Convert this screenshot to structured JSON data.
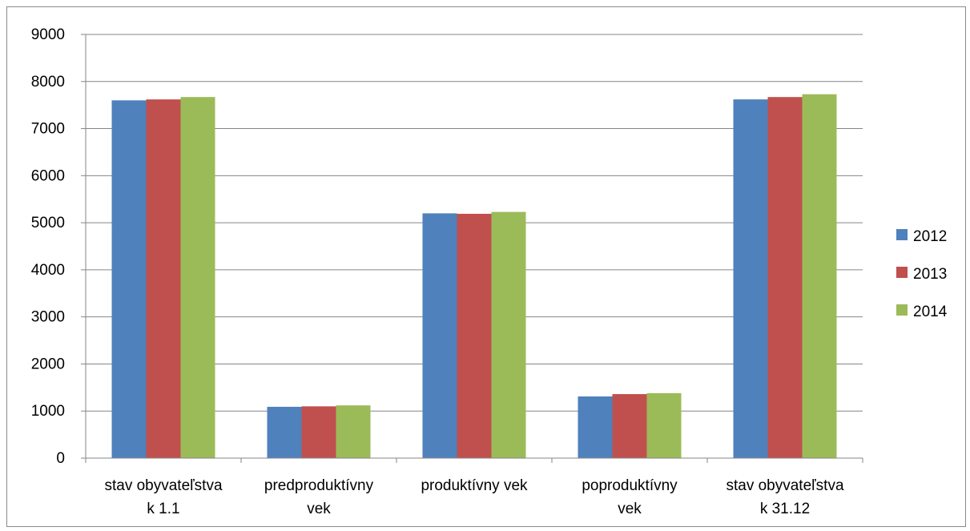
{
  "chart_data": {
    "type": "bar",
    "categories": [
      [
        "stav obyvateľstva",
        "k 1.1"
      ],
      [
        "predproduktívny",
        "vek"
      ],
      [
        "produktívny vek"
      ],
      [
        "poproduktívny",
        "vek"
      ],
      [
        "stav obyvateľstva",
        "k 31.12"
      ]
    ],
    "series": [
      {
        "name": "2012",
        "color": "#4f81bd",
        "values": [
          7600,
          1090,
          5200,
          1310,
          7620
        ]
      },
      {
        "name": "2013",
        "color": "#c0504d",
        "values": [
          7620,
          1100,
          5190,
          1360,
          7670
        ]
      },
      {
        "name": "2014",
        "color": "#9bbb59",
        "values": [
          7670,
          1120,
          5230,
          1380,
          7730
        ]
      }
    ],
    "ylim": [
      0,
      9000
    ],
    "yticks": [
      0,
      1000,
      2000,
      3000,
      4000,
      5000,
      6000,
      7000,
      8000,
      9000
    ],
    "grid": true,
    "legend_position": "right"
  }
}
